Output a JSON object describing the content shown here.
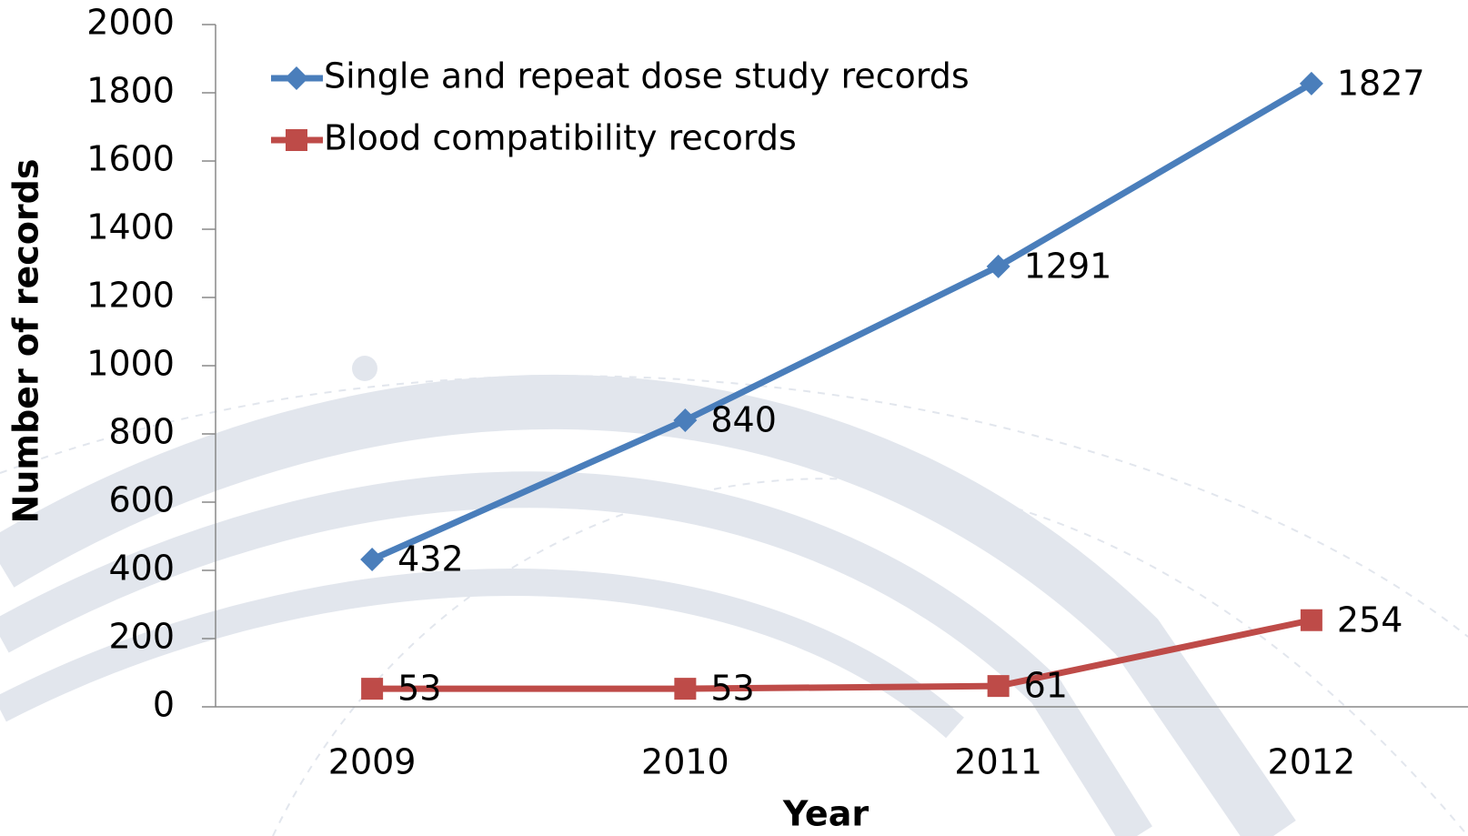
{
  "chart_data": {
    "type": "line",
    "x_label": "Year",
    "y_label": "Number of records",
    "categories": [
      "2009",
      "2010",
      "2011",
      "2012"
    ],
    "series": [
      {
        "name": "Single and repeat dose study records",
        "color": "#4a7ebb",
        "marker": "diamond",
        "values": [
          432,
          840,
          1291,
          1827
        ]
      },
      {
        "name": "Blood compatibility records",
        "color": "#be4b48",
        "marker": "square",
        "values": [
          53,
          53,
          61,
          254
        ]
      }
    ],
    "ylim": [
      0,
      2000
    ],
    "yticks": [
      0,
      200,
      400,
      600,
      800,
      1000,
      1200,
      1400,
      1600,
      1800,
      2000
    ],
    "grid": false,
    "legend": "top-left"
  }
}
